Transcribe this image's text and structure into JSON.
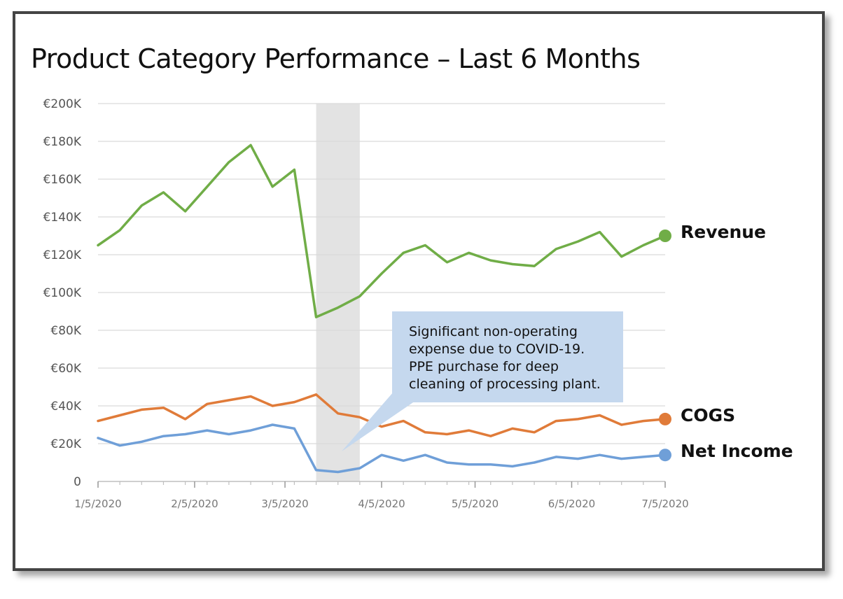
{
  "chart_data": {
    "type": "line",
    "title": "Product Category Performance – Last 6 Months",
    "xlabel": "",
    "ylabel": "",
    "y_ticks": [
      "0",
      "€20K",
      "€40K",
      "€60K",
      "€80K",
      "€100K",
      "€120K",
      "€140K",
      "€160K",
      "€180K",
      "€200K"
    ],
    "ylim": [
      0,
      200000
    ],
    "x_ticks": [
      "1/5/2020",
      "2/5/2020",
      "3/5/2020",
      "4/5/2020",
      "5/5/2020",
      "6/5/2020",
      "7/5/2020"
    ],
    "xlim": [
      "2020-01-05",
      "2020-07-05"
    ],
    "grid": "horizontal",
    "x": [
      "2020-01-05",
      "2020-01-12",
      "2020-01-19",
      "2020-01-26",
      "2020-02-02",
      "2020-02-09",
      "2020-02-16",
      "2020-02-23",
      "2020-03-01",
      "2020-03-08",
      "2020-03-15",
      "2020-03-22",
      "2020-03-29",
      "2020-04-05",
      "2020-04-12",
      "2020-04-19",
      "2020-04-26",
      "2020-05-03",
      "2020-05-10",
      "2020-05-17",
      "2020-05-24",
      "2020-05-31",
      "2020-06-07",
      "2020-06-14",
      "2020-06-21",
      "2020-06-28",
      "2020-07-05"
    ],
    "series": [
      {
        "name": "Revenue",
        "color": "#70AD47",
        "values": [
          125000,
          133000,
          146000,
          153000,
          143000,
          156000,
          169000,
          178000,
          156000,
          165000,
          87000,
          92000,
          98000,
          110000,
          121000,
          125000,
          116000,
          121000,
          117000,
          115000,
          114000,
          123000,
          127000,
          132000,
          119000,
          125000,
          130000
        ]
      },
      {
        "name": "COGS",
        "color": "#E07B39",
        "values": [
          32000,
          35000,
          38000,
          39000,
          33000,
          41000,
          43000,
          45000,
          40000,
          42000,
          46000,
          36000,
          34000,
          29000,
          32000,
          26000,
          25000,
          27000,
          24000,
          28000,
          26000,
          32000,
          33000,
          35000,
          30000,
          32000,
          33000
        ]
      },
      {
        "name": "Net Income",
        "color": "#6F9FD8",
        "values": [
          23000,
          19000,
          21000,
          24000,
          25000,
          27000,
          25000,
          27000,
          30000,
          28000,
          6000,
          5000,
          7000,
          14000,
          11000,
          14000,
          10000,
          9000,
          9000,
          8000,
          10000,
          13000,
          12000,
          14000,
          12000,
          13000,
          14000
        ]
      }
    ],
    "highlight_band": {
      "from": "2020-03-15",
      "to": "2020-03-29",
      "color": "#E3E3E3"
    },
    "annotation": {
      "lines": [
        "Significant non-operating",
        "expense due to COVID-19.",
        "PPE purchase for deep",
        "cleaning of processing plant."
      ],
      "color": "#C5D8EE"
    },
    "legend": "inline-right"
  }
}
